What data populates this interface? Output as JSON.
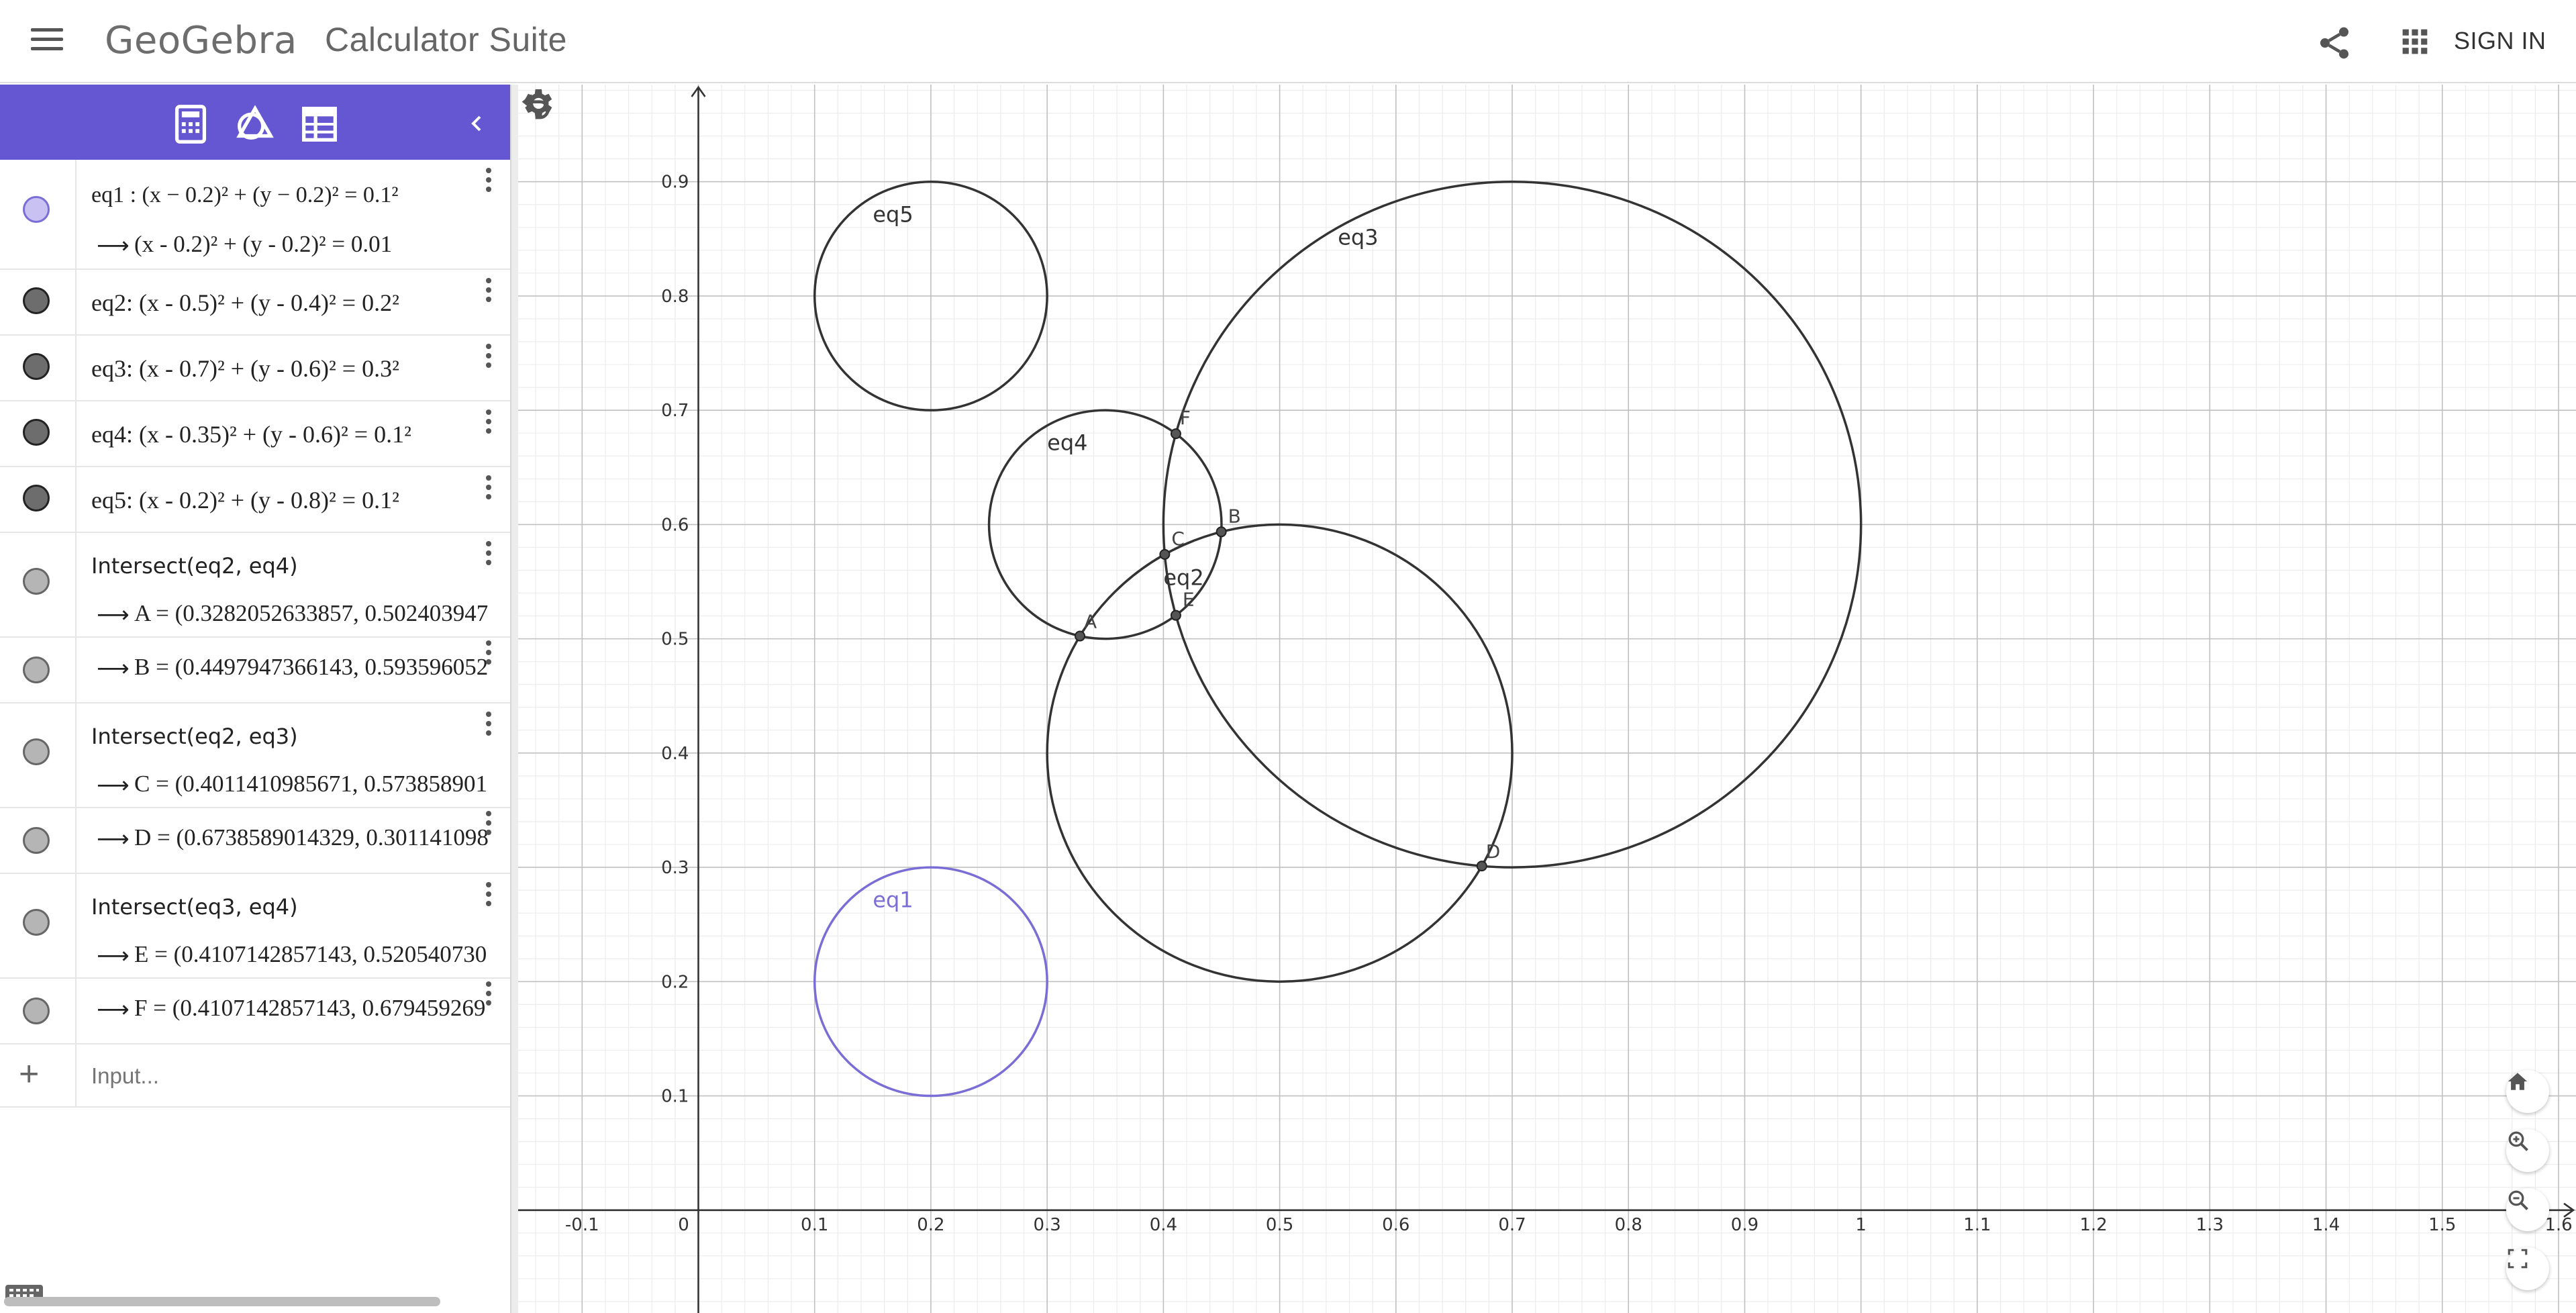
{
  "header": {
    "logo": "GeoGebra",
    "title": "Calculator Suite",
    "signin_label": "SIGN IN"
  },
  "colors": {
    "accent": "#6557d2",
    "eq1_color": "#7a6dd6",
    "curve_color": "#333333",
    "grid_major": "#c0c0c0",
    "grid_minor": "#ececec"
  },
  "toolbar": {
    "tabs": [
      "calculator-icon",
      "geometry-tools-icon",
      "table-icon"
    ],
    "active_tab": "calculator-icon",
    "collapse_icon": "chevron-left-icon"
  },
  "algebra": {
    "rows": [
      {
        "id": "eq1",
        "definition": "eq1 : (x − 0.2)² + (y − 0.2)² = 0.1²",
        "value": "(x - 0.2)² + (y - 0.2)² = 0.01",
        "marble": "purple"
      },
      {
        "id": "eq2",
        "definition": "eq2: (x - 0.5)² + (y - 0.4)² = 0.2²",
        "marble": "dark"
      },
      {
        "id": "eq3",
        "definition": "eq3: (x - 0.7)² + (y - 0.6)² = 0.3²",
        "marble": "dark"
      },
      {
        "id": "eq4",
        "definition": "eq4: (x - 0.35)² + (y - 0.6)² = 0.1²",
        "marble": "dark"
      },
      {
        "id": "eq5",
        "definition": "eq5: (x - 0.2)² + (y - 0.8)² = 0.1²",
        "marble": "dark"
      },
      {
        "id": "A",
        "definition": "Intersect(eq2, eq4)",
        "value": "A = (0.3282052633857, 0.502403947",
        "marble": "grey"
      },
      {
        "id": "B",
        "value": "B = (0.4497947366143, 0.593596052",
        "marble": "grey"
      },
      {
        "id": "C",
        "definition": "Intersect(eq2, eq3)",
        "value": "C = (0.4011410985671, 0.573858901",
        "marble": "grey"
      },
      {
        "id": "D",
        "value": "D = (0.6738589014329, 0.301141098",
        "marble": "grey"
      },
      {
        "id": "E",
        "definition": "Intersect(eq3, eq4)",
        "value": "E = (0.4107142857143, 0.520540730",
        "marble": "grey"
      },
      {
        "id": "F",
        "value": "F = (0.4107142857143, 0.679459269",
        "marble": "grey"
      }
    ],
    "input_placeholder": "Input..."
  },
  "graph": {
    "x_ticks": [
      "-0.1",
      "0",
      "0.1",
      "0.2",
      "0.3",
      "0.4",
      "0.5",
      "0.6",
      "0.7",
      "0.8",
      "0.9",
      "1",
      "1.1",
      "1.2",
      "1.3",
      "1.4",
      "1.5",
      "1.6"
    ],
    "y_ticks": [
      "0.1",
      "0.2",
      "0.3",
      "0.4",
      "0.5",
      "0.6",
      "0.7",
      "0.8",
      "0.9"
    ],
    "circles": [
      {
        "name": "eq1",
        "cx": 0.2,
        "cy": 0.2,
        "r": 0.1,
        "color": "#7a6dd6",
        "label": "eq1"
      },
      {
        "name": "eq2",
        "cx": 0.5,
        "cy": 0.4,
        "r": 0.2,
        "color": "#333333",
        "label": "eq2"
      },
      {
        "name": "eq3",
        "cx": 0.7,
        "cy": 0.6,
        "r": 0.3,
        "color": "#333333",
        "label": "eq3"
      },
      {
        "name": "eq4",
        "cx": 0.35,
        "cy": 0.6,
        "r": 0.1,
        "color": "#333333",
        "label": "eq4"
      },
      {
        "name": "eq5",
        "cx": 0.2,
        "cy": 0.8,
        "r": 0.1,
        "color": "#333333",
        "label": "eq5"
      }
    ],
    "points": [
      {
        "name": "A",
        "x": 0.3282052633857,
        "y": 0.502403947
      },
      {
        "name": "B",
        "x": 0.4497947366143,
        "y": 0.593596052
      },
      {
        "name": "C",
        "x": 0.4011410985671,
        "y": 0.573858901
      },
      {
        "name": "D",
        "x": 0.6738589014329,
        "y": 0.301141098
      },
      {
        "name": "E",
        "x": 0.4107142857143,
        "y": 0.52054073
      },
      {
        "name": "F",
        "x": 0.4107142857143,
        "y": 0.679459269
      }
    ],
    "xlim": [
      -0.155,
      1.615
    ],
    "ylim": [
      -0.09,
      0.985
    ]
  }
}
